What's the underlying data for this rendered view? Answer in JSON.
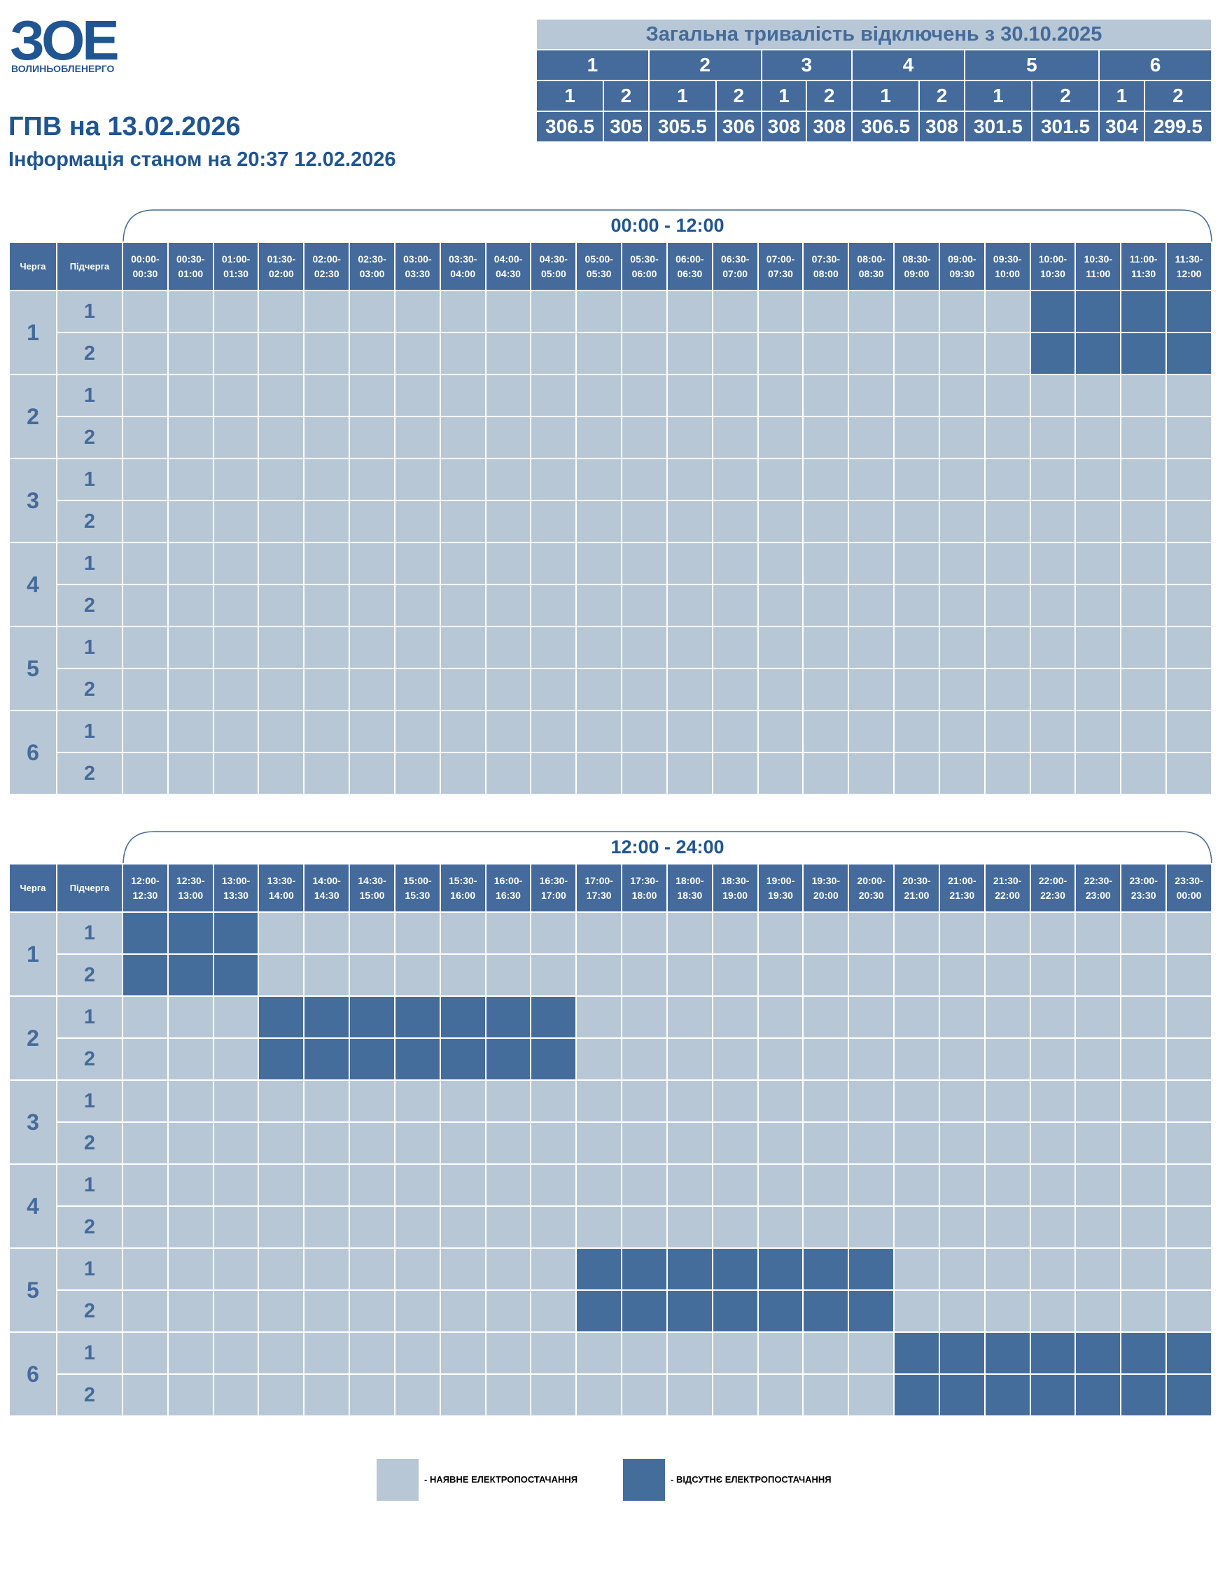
{
  "logo": {
    "mark": "ЗОЕ",
    "name": "ВОЛИНЬОБЛЕНЕРГО"
  },
  "header": {
    "title": "ГПВ на 13.02.2026",
    "subtitle": "Інформація станом на 20:37 12.02.2026"
  },
  "summary": {
    "title": "Загальна тривалість відключень з 30.10.2025",
    "groups": [
      {
        "label": "1",
        "subgroups": [
          "1",
          "2"
        ],
        "values": [
          306.5,
          305
        ]
      },
      {
        "label": "2",
        "subgroups": [
          "1",
          "2"
        ],
        "values": [
          305.5,
          306
        ]
      },
      {
        "label": "3",
        "subgroups": [
          "1",
          "2"
        ],
        "values": [
          308,
          308
        ]
      },
      {
        "label": "4",
        "subgroups": [
          "1",
          "2"
        ],
        "values": [
          306.5,
          308
        ]
      },
      {
        "label": "5",
        "subgroups": [
          "1",
          "2"
        ],
        "values": [
          301.5,
          301.5
        ]
      },
      {
        "label": "6",
        "subgroups": [
          "1",
          "2"
        ],
        "values": [
          304,
          299.5
        ]
      }
    ]
  },
  "schedules": [
    {
      "period": "00:00 - 12:00",
      "headers": [
        "Черга",
        "Підчерга"
      ],
      "slots": [
        "00:00-00:30",
        "00:30-01:00",
        "01:00-01:30",
        "01:30-02:00",
        "02:00-02:30",
        "02:30-03:00",
        "03:00-03:30",
        "03:30-04:00",
        "04:00-04:30",
        "04:30-05:00",
        "05:00-05:30",
        "05:30-06:00",
        "06:00-06:30",
        "06:30-07:00",
        "07:00-07:30",
        "07:30-08:00",
        "08:00-08:30",
        "08:30-09:00",
        "09:00-09:30",
        "09:30-10:00",
        "10:00-10:30",
        "10:30-11:00",
        "11:00-11:30",
        "11:30-12:00"
      ],
      "queues": [
        {
          "label": "1",
          "subqueues": [
            {
              "label": "1",
              "off": [
                0,
                0,
                0,
                0,
                0,
                0,
                0,
                0,
                0,
                0,
                0,
                0,
                0,
                0,
                0,
                0,
                0,
                0,
                0,
                0,
                1,
                1,
                1,
                1
              ]
            },
            {
              "label": "2",
              "off": [
                0,
                0,
                0,
                0,
                0,
                0,
                0,
                0,
                0,
                0,
                0,
                0,
                0,
                0,
                0,
                0,
                0,
                0,
                0,
                0,
                1,
                1,
                1,
                1
              ]
            }
          ]
        },
        {
          "label": "2",
          "subqueues": [
            {
              "label": "1",
              "off": [
                0,
                0,
                0,
                0,
                0,
                0,
                0,
                0,
                0,
                0,
                0,
                0,
                0,
                0,
                0,
                0,
                0,
                0,
                0,
                0,
                0,
                0,
                0,
                0
              ]
            },
            {
              "label": "2",
              "off": [
                0,
                0,
                0,
                0,
                0,
                0,
                0,
                0,
                0,
                0,
                0,
                0,
                0,
                0,
                0,
                0,
                0,
                0,
                0,
                0,
                0,
                0,
                0,
                0
              ]
            }
          ]
        },
        {
          "label": "3",
          "subqueues": [
            {
              "label": "1",
              "off": [
                0,
                0,
                0,
                0,
                0,
                0,
                0,
                0,
                0,
                0,
                0,
                0,
                0,
                0,
                0,
                0,
                0,
                0,
                0,
                0,
                0,
                0,
                0,
                0
              ]
            },
            {
              "label": "2",
              "off": [
                0,
                0,
                0,
                0,
                0,
                0,
                0,
                0,
                0,
                0,
                0,
                0,
                0,
                0,
                0,
                0,
                0,
                0,
                0,
                0,
                0,
                0,
                0,
                0
              ]
            }
          ]
        },
        {
          "label": "4",
          "subqueues": [
            {
              "label": "1",
              "off": [
                0,
                0,
                0,
                0,
                0,
                0,
                0,
                0,
                0,
                0,
                0,
                0,
                0,
                0,
                0,
                0,
                0,
                0,
                0,
                0,
                0,
                0,
                0,
                0
              ]
            },
            {
              "label": "2",
              "off": [
                0,
                0,
                0,
                0,
                0,
                0,
                0,
                0,
                0,
                0,
                0,
                0,
                0,
                0,
                0,
                0,
                0,
                0,
                0,
                0,
                0,
                0,
                0,
                0
              ]
            }
          ]
        },
        {
          "label": "5",
          "subqueues": [
            {
              "label": "1",
              "off": [
                0,
                0,
                0,
                0,
                0,
                0,
                0,
                0,
                0,
                0,
                0,
                0,
                0,
                0,
                0,
                0,
                0,
                0,
                0,
                0,
                0,
                0,
                0,
                0
              ]
            },
            {
              "label": "2",
              "off": [
                0,
                0,
                0,
                0,
                0,
                0,
                0,
                0,
                0,
                0,
                0,
                0,
                0,
                0,
                0,
                0,
                0,
                0,
                0,
                0,
                0,
                0,
                0,
                0
              ]
            }
          ]
        },
        {
          "label": "6",
          "subqueues": [
            {
              "label": "1",
              "off": [
                0,
                0,
                0,
                0,
                0,
                0,
                0,
                0,
                0,
                0,
                0,
                0,
                0,
                0,
                0,
                0,
                0,
                0,
                0,
                0,
                0,
                0,
                0,
                0
              ]
            },
            {
              "label": "2",
              "off": [
                0,
                0,
                0,
                0,
                0,
                0,
                0,
                0,
                0,
                0,
                0,
                0,
                0,
                0,
                0,
                0,
                0,
                0,
                0,
                0,
                0,
                0,
                0,
                0
              ]
            }
          ]
        }
      ]
    },
    {
      "period": "12:00 - 24:00",
      "headers": [
        "Черга",
        "Підчерга"
      ],
      "slots": [
        "12:00-12:30",
        "12:30-13:00",
        "13:00-13:30",
        "13:30-14:00",
        "14:00-14:30",
        "14:30-15:00",
        "15:00-15:30",
        "15:30-16:00",
        "16:00-16:30",
        "16:30-17:00",
        "17:00-17:30",
        "17:30-18:00",
        "18:00-18:30",
        "18:30-19:00",
        "19:00-19:30",
        "19:30-20:00",
        "20:00-20:30",
        "20:30-21:00",
        "21:00-21:30",
        "21:30-22:00",
        "22:00-22:30",
        "22:30-23:00",
        "23:00-23:30",
        "23:30-00:00"
      ],
      "queues": [
        {
          "label": "1",
          "subqueues": [
            {
              "label": "1",
              "off": [
                1,
                1,
                1,
                0,
                0,
                0,
                0,
                0,
                0,
                0,
                0,
                0,
                0,
                0,
                0,
                0,
                0,
                0,
                0,
                0,
                0,
                0,
                0,
                0
              ]
            },
            {
              "label": "2",
              "off": [
                1,
                1,
                1,
                0,
                0,
                0,
                0,
                0,
                0,
                0,
                0,
                0,
                0,
                0,
                0,
                0,
                0,
                0,
                0,
                0,
                0,
                0,
                0,
                0
              ]
            }
          ]
        },
        {
          "label": "2",
          "subqueues": [
            {
              "label": "1",
              "off": [
                0,
                0,
                0,
                1,
                1,
                1,
                1,
                1,
                1,
                1,
                0,
                0,
                0,
                0,
                0,
                0,
                0,
                0,
                0,
                0,
                0,
                0,
                0,
                0
              ]
            },
            {
              "label": "2",
              "off": [
                0,
                0,
                0,
                1,
                1,
                1,
                1,
                1,
                1,
                1,
                0,
                0,
                0,
                0,
                0,
                0,
                0,
                0,
                0,
                0,
                0,
                0,
                0,
                0
              ]
            }
          ]
        },
        {
          "label": "3",
          "subqueues": [
            {
              "label": "1",
              "off": [
                0,
                0,
                0,
                0,
                0,
                0,
                0,
                0,
                0,
                0,
                0,
                0,
                0,
                0,
                0,
                0,
                0,
                0,
                0,
                0,
                0,
                0,
                0,
                0
              ]
            },
            {
              "label": "2",
              "off": [
                0,
                0,
                0,
                0,
                0,
                0,
                0,
                0,
                0,
                0,
                0,
                0,
                0,
                0,
                0,
                0,
                0,
                0,
                0,
                0,
                0,
                0,
                0,
                0
              ]
            }
          ]
        },
        {
          "label": "4",
          "subqueues": [
            {
              "label": "1",
              "off": [
                0,
                0,
                0,
                0,
                0,
                0,
                0,
                0,
                0,
                0,
                0,
                0,
                0,
                0,
                0,
                0,
                0,
                0,
                0,
                0,
                0,
                0,
                0,
                0
              ]
            },
            {
              "label": "2",
              "off": [
                0,
                0,
                0,
                0,
                0,
                0,
                0,
                0,
                0,
                0,
                0,
                0,
                0,
                0,
                0,
                0,
                0,
                0,
                0,
                0,
                0,
                0,
                0,
                0
              ]
            }
          ]
        },
        {
          "label": "5",
          "subqueues": [
            {
              "label": "1",
              "off": [
                0,
                0,
                0,
                0,
                0,
                0,
                0,
                0,
                0,
                0,
                1,
                1,
                1,
                1,
                1,
                1,
                1,
                0,
                0,
                0,
                0,
                0,
                0,
                0
              ]
            },
            {
              "label": "2",
              "off": [
                0,
                0,
                0,
                0,
                0,
                0,
                0,
                0,
                0,
                0,
                1,
                1,
                1,
                1,
                1,
                1,
                1,
                0,
                0,
                0,
                0,
                0,
                0,
                0
              ]
            }
          ]
        },
        {
          "label": "6",
          "subqueues": [
            {
              "label": "1",
              "off": [
                0,
                0,
                0,
                0,
                0,
                0,
                0,
                0,
                0,
                0,
                0,
                0,
                0,
                0,
                0,
                0,
                0,
                1,
                1,
                1,
                1,
                1,
                1,
                1
              ]
            },
            {
              "label": "2",
              "off": [
                0,
                0,
                0,
                0,
                0,
                0,
                0,
                0,
                0,
                0,
                0,
                0,
                0,
                0,
                0,
                0,
                0,
                1,
                1,
                1,
                1,
                1,
                1,
                1
              ]
            }
          ]
        }
      ]
    }
  ],
  "legend": [
    {
      "label": "- НАЯВНЕ ЕЛЕКТРОПОСТАЧАННЯ",
      "color": "#b8c7d6"
    },
    {
      "label": "- ВІДСУТНЄ ЕЛЕКТРОПОСТАЧАННЯ",
      "color": "#456d9c"
    }
  ]
}
